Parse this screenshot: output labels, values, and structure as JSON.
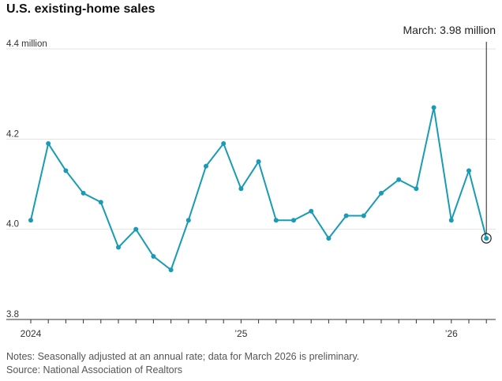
{
  "title": "U.S. existing-home sales",
  "notes": "Notes: Seasonally adjusted at an annual rate; data for March 2026 is preliminary.",
  "source": "Source: National Association of Realtors",
  "colors": {
    "line": "#1a9bb5",
    "grid": "#e3e3e3",
    "axis": "#333333",
    "annotation": "#222222"
  },
  "chart_data": {
    "type": "line",
    "title": "U.S. existing-home sales",
    "xlabel": "",
    "ylabel": "",
    "x": [
      "2024-01",
      "2024-02",
      "2024-03",
      "2024-04",
      "2024-05",
      "2024-06",
      "2024-07",
      "2024-08",
      "2024-09",
      "2024-10",
      "2024-11",
      "2024-12",
      "2025-01",
      "2025-02",
      "2025-03",
      "2025-04",
      "2025-05",
      "2025-06",
      "2025-07",
      "2025-08",
      "2025-09",
      "2025-10",
      "2025-11",
      "2025-12",
      "2026-01",
      "2026-02",
      "2026-03"
    ],
    "series": [
      {
        "values": [
          4.02,
          4.19,
          4.13,
          4.08,
          4.06,
          3.96,
          4.0,
          3.94,
          3.91,
          4.02,
          4.14,
          4.19,
          4.09,
          4.15,
          4.02,
          4.02,
          4.04,
          3.98,
          4.03,
          4.03,
          4.08,
          4.11,
          4.09,
          4.27,
          4.02,
          4.13,
          3.98
        ]
      }
    ],
    "ylim": [
      3.8,
      4.4
    ],
    "yticks": [
      {
        "value": 4.4,
        "label": "4.4 million"
      },
      {
        "value": 4.2,
        "label": "4.2"
      },
      {
        "value": 4.0,
        "label": "4.0"
      },
      {
        "value": 3.8,
        "label": "3.8"
      }
    ],
    "xticks": [
      {
        "x": "2024-01",
        "label": "2024"
      },
      {
        "x": "2025-01",
        "label": "’25"
      },
      {
        "x": "2026-01",
        "label": "’26"
      }
    ],
    "grid": true,
    "annotation": {
      "x": "2026-03",
      "value": 3.98,
      "text": "March: 3.98 million"
    }
  }
}
